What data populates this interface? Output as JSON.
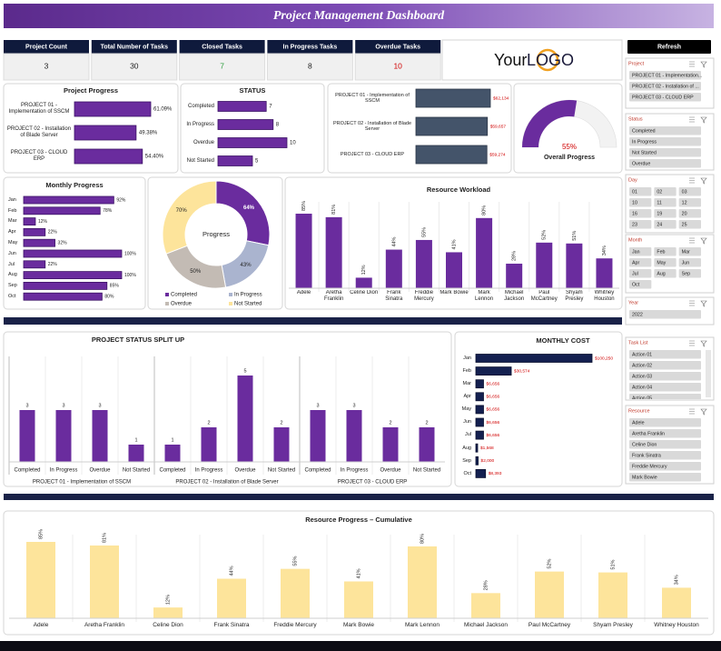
{
  "header": {
    "title": "Project Management Dashboard"
  },
  "kpis": [
    {
      "label": "Project Count",
      "value": 3,
      "color": "#222222"
    },
    {
      "label": "Total Number of Tasks",
      "value": 30,
      "color": "#222222"
    },
    {
      "label": "Closed Tasks",
      "value": 7,
      "color": "#2e9e3e"
    },
    {
      "label": "In Progress Tasks",
      "value": 8,
      "color": "#222222"
    },
    {
      "label": "Overdue Tasks",
      "value": 10,
      "color": "#d00000"
    }
  ],
  "logo": {
    "text": "Your",
    "highlight": "LOGO"
  },
  "refresh": "Refresh",
  "slicers": [
    {
      "title": "Project",
      "items": [
        "PROJECT 01 - Implementation...",
        "PROJECT 02 - Installation of ...",
        "PROJECT 03 - CLOUD ERP"
      ]
    },
    {
      "title": "Status",
      "items": [
        "Completed",
        "In Progress",
        "Not Started",
        "Overdue"
      ]
    },
    {
      "title": "Day",
      "items": [
        "01",
        "02",
        "03",
        "10",
        "11",
        "12",
        "16",
        "19",
        "20",
        "23",
        "24",
        "25"
      ]
    },
    {
      "title": "Month",
      "items": [
        "Jan",
        "Feb",
        "Mar",
        "Apr",
        "May",
        "Jun",
        "Jul",
        "Aug",
        "Sep",
        "Oct"
      ]
    },
    {
      "title": "Year",
      "items": [
        "2022"
      ]
    },
    {
      "title": "Task List",
      "items": [
        "Action 01",
        "Action 02",
        "Action 03",
        "Action 04",
        "Action 05"
      ]
    },
    {
      "title": "Resource",
      "items": [
        "Adele",
        "Aretha Franklin",
        "Celine Dion",
        "Frank Sinatra",
        "Freddie Mercury",
        "Mark Bowie"
      ]
    }
  ],
  "chart_data": [
    {
      "type": "bar",
      "orientation": "horizontal",
      "title": "Project Progress",
      "categories": [
        "PROJECT 01 - Implementation of SSCM",
        "PROJECT 02 - Installation of Blade Server",
        "PROJECT 03 - CLOUD ERP"
      ],
      "values": [
        61.09,
        49.38,
        54.4
      ],
      "value_labels": [
        "61.09%",
        "49.38%",
        "54.40%"
      ],
      "color": "#6a2c9e"
    },
    {
      "type": "bar",
      "orientation": "horizontal",
      "title": "STATUS",
      "categories": [
        "Completed",
        "In Progress",
        "Overdue",
        "Not Started"
      ],
      "values": [
        7,
        8,
        10,
        5
      ],
      "color": "#6a2c9e"
    },
    {
      "type": "bar",
      "orientation": "horizontal",
      "categories": [
        "PROJECT 01 - Implementation of SSCM",
        "PROJECT 02 - Installation of Blade Server",
        "PROJECT 03 - CLOUD ERP"
      ],
      "values": [
        62134,
        59657,
        59274
      ],
      "value_labels": [
        "$62,134",
        "$59,657",
        "$59,274"
      ],
      "color": "#44546a"
    },
    {
      "type": "gauge",
      "title": "Overall Progress",
      "value": 55,
      "value_label": "55%",
      "color": "#6a2c9e"
    },
    {
      "type": "bar",
      "orientation": "horizontal",
      "title": "Monthly Progress",
      "categories": [
        "Jan",
        "Feb",
        "Mar",
        "Apr",
        "May",
        "Jun",
        "Jul",
        "Aug",
        "Sep",
        "Oct"
      ],
      "values": [
        92,
        78,
        12,
        22,
        32,
        100,
        22,
        100,
        85,
        80
      ],
      "value_labels": [
        "92%",
        "78%",
        "12%",
        "22%",
        "32%",
        "100%",
        "22%",
        "100%",
        "85%",
        "80%"
      ],
      "color": "#6a2c9e"
    },
    {
      "type": "pie",
      "title": "Progress",
      "categories": [
        "Completed",
        "In Progress",
        "Overdue",
        "Not Started"
      ],
      "values": [
        64,
        43,
        50,
        70
      ],
      "value_labels": [
        "64%",
        "43%",
        "50%",
        "70%"
      ],
      "colors": [
        "#6a2c9e",
        "#aab4cf",
        "#c3bbb4",
        "#fde49b"
      ]
    },
    {
      "type": "bar",
      "title": "Resource Workload",
      "categories": [
        "Adele",
        "Aretha Franklin",
        "Celine Dion",
        "Frank Sinatra",
        "Freddie Mercury",
        "Mark Bowie",
        "Mark Lennon",
        "Michael Jackson",
        "Paul McCartney",
        "Shyam Presley",
        "Whitney Houston"
      ],
      "values": [
        85,
        81,
        12,
        44,
        55,
        41,
        80,
        28,
        52,
        51,
        34
      ],
      "value_labels": [
        "85%",
        "81%",
        "12%",
        "44%",
        "55%",
        "41%",
        "80%",
        "28%",
        "52%",
        "51%",
        "34%"
      ],
      "color": "#6a2c9e"
    },
    {
      "type": "bar",
      "title": "PROJECT STATUS SPLIT UP",
      "categories": [
        "Completed",
        "In Progress",
        "Overdue",
        "Not Started"
      ],
      "series": [
        {
          "name": "PROJECT 01 - Implementation of SSCM",
          "color": "#6a2c9e",
          "values": [
            3,
            3,
            3,
            1
          ]
        },
        {
          "name": "PROJECT 02 - Installation of Blade Server",
          "color": "#6a2c9e",
          "values": [
            1,
            2,
            5,
            2
          ]
        },
        {
          "name": "PROJECT 03 - CLOUD ERP",
          "color": "#6a2c9e",
          "values": [
            3,
            3,
            2,
            2
          ]
        }
      ]
    },
    {
      "type": "bar",
      "orientation": "horizontal",
      "title": "MONTHLY COST",
      "categories": [
        "Jan",
        "Feb",
        "Mar",
        "Apr",
        "May",
        "Jun",
        "Jul",
        "Aug",
        "Sep",
        "Oct"
      ],
      "values": [
        100250,
        30574,
        6656,
        6656,
        6656,
        6656,
        6656,
        1568,
        2000,
        8393
      ],
      "value_labels": [
        "$100,250",
        "$30,574",
        "$6,656",
        "$6,656",
        "$6,656",
        "$6,656",
        "$6,656",
        "$1,568",
        "$2,000",
        "$8,393"
      ],
      "color": "#142050"
    },
    {
      "type": "bar",
      "title": "Resource Progress – Cumulative",
      "categories": [
        "Adele",
        "Aretha Franklin",
        "Celine Dion",
        "Frank Sinatra",
        "Freddie Mercury",
        "Mark Bowie",
        "Mark Lennon",
        "Michael Jackson",
        "Paul McCartney",
        "Shyam Presley",
        "Whitney Houston"
      ],
      "values": [
        85,
        81,
        12,
        44,
        55,
        41,
        80,
        28,
        52,
        51,
        34
      ],
      "value_labels": [
        "85%",
        "81%",
        "12%",
        "44%",
        "55%",
        "41%",
        "80%",
        "28%",
        "52%",
        "51%",
        "34%"
      ],
      "color": "#fde49b"
    }
  ]
}
